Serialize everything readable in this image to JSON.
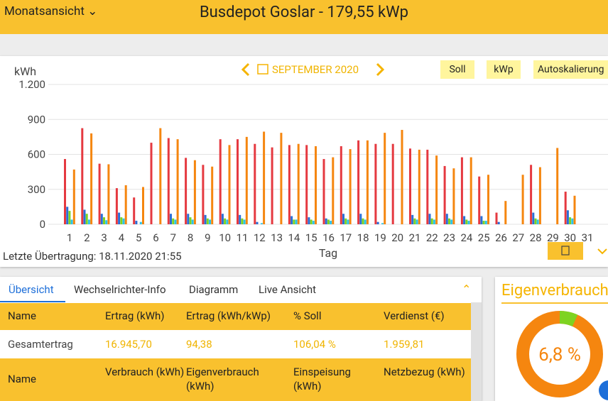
{
  "header": {
    "menu": "Monatsansicht",
    "title": "Busdepot Goslar - 179,55 kWp"
  },
  "controls": {
    "month": "SEPTEMBER 2020",
    "buttons": [
      "Soll",
      "kWp",
      "Autoskalierung"
    ]
  },
  "status": "Letzte Übertragung: 18.11.2020 21:55",
  "chart_data": {
    "type": "bar",
    "y_label": "kWh",
    "x_label": "Tag",
    "categories": [
      "1",
      "2",
      "3",
      "4",
      "5",
      "6",
      "7",
      "8",
      "9",
      "10",
      "11",
      "12",
      "13",
      "14",
      "15",
      "16",
      "17",
      "18",
      "19",
      "20",
      "21",
      "22",
      "23",
      "24",
      "25",
      "26",
      "27",
      "28",
      "29",
      "30",
      "31"
    ],
    "ylim": [
      0,
      1200
    ],
    "yticks": [
      0,
      300,
      600,
      900,
      {
        "value": 1200,
        "label": "1.200"
      }
    ],
    "grid": true,
    "series": [
      {
        "color": "#e53940",
        "values": [
          560,
          825,
          520,
          310,
          230,
          700,
          740,
          570,
          510,
          730,
          730,
          690,
          660,
          680,
          680,
          560,
          670,
          720,
          690,
          690,
          650,
          640,
          500,
          575,
          410,
          100,
          null,
          510,
          null,
          280,
          null
        ]
      },
      {
        "color": "#2a6fd6",
        "values": [
          150,
          125,
          90,
          100,
          30,
          null,
          90,
          90,
          80,
          90,
          80,
          20,
          null,
          70,
          60,
          50,
          90,
          90,
          20,
          null,
          80,
          90,
          90,
          70,
          70,
          20,
          null,
          100,
          null,
          120,
          null
        ]
      },
      {
        "color": "#7ed321",
        "values": [
          115,
          90,
          60,
          60,
          null,
          null,
          50,
          60,
          50,
          50,
          50,
          null,
          null,
          40,
          40,
          40,
          50,
          50,
          null,
          null,
          50,
          50,
          50,
          40,
          30,
          null,
          null,
          50,
          null,
          60,
          null
        ]
      },
      {
        "color": "#2bc4e8",
        "values": [
          40,
          40,
          35,
          50,
          20,
          null,
          40,
          40,
          40,
          40,
          40,
          10,
          null,
          40,
          30,
          30,
          40,
          40,
          10,
          null,
          40,
          40,
          40,
          30,
          30,
          null,
          null,
          40,
          null,
          50,
          null
        ]
      },
      {
        "color": "#f5860f",
        "values": [
          470,
          780,
          515,
          335,
          320,
          825,
          730,
          550,
          495,
          680,
          750,
          795,
          785,
          690,
          670,
          575,
          645,
          720,
          785,
          810,
          640,
          590,
          480,
          575,
          425,
          200,
          425,
          490,
          655,
          245,
          null
        ]
      }
    ]
  },
  "tabs": [
    "Übersicht",
    "Wechselrichter-Info",
    "Diagramm",
    "Live Ansicht"
  ],
  "table": {
    "header": [
      "Name",
      "Ertrag (kWh)",
      "Ertrag (kWh/kWp)",
      "% Soll",
      "Verdienst (€)"
    ],
    "rows": [
      [
        "Gesamtertrag",
        "16.945,70",
        "94,38",
        "106,04 %",
        "1.959,81"
      ]
    ],
    "header2": [
      "Name",
      "Verbrauch (kWh)",
      "Eigenverbrauch (kWh)",
      "Einspeisung (kWh)",
      "Netzbezug (kWh)"
    ]
  },
  "eigenverbrauch": {
    "title": "Eigenverbrauch",
    "value": 6.8,
    "value_label": "6,8 %"
  }
}
